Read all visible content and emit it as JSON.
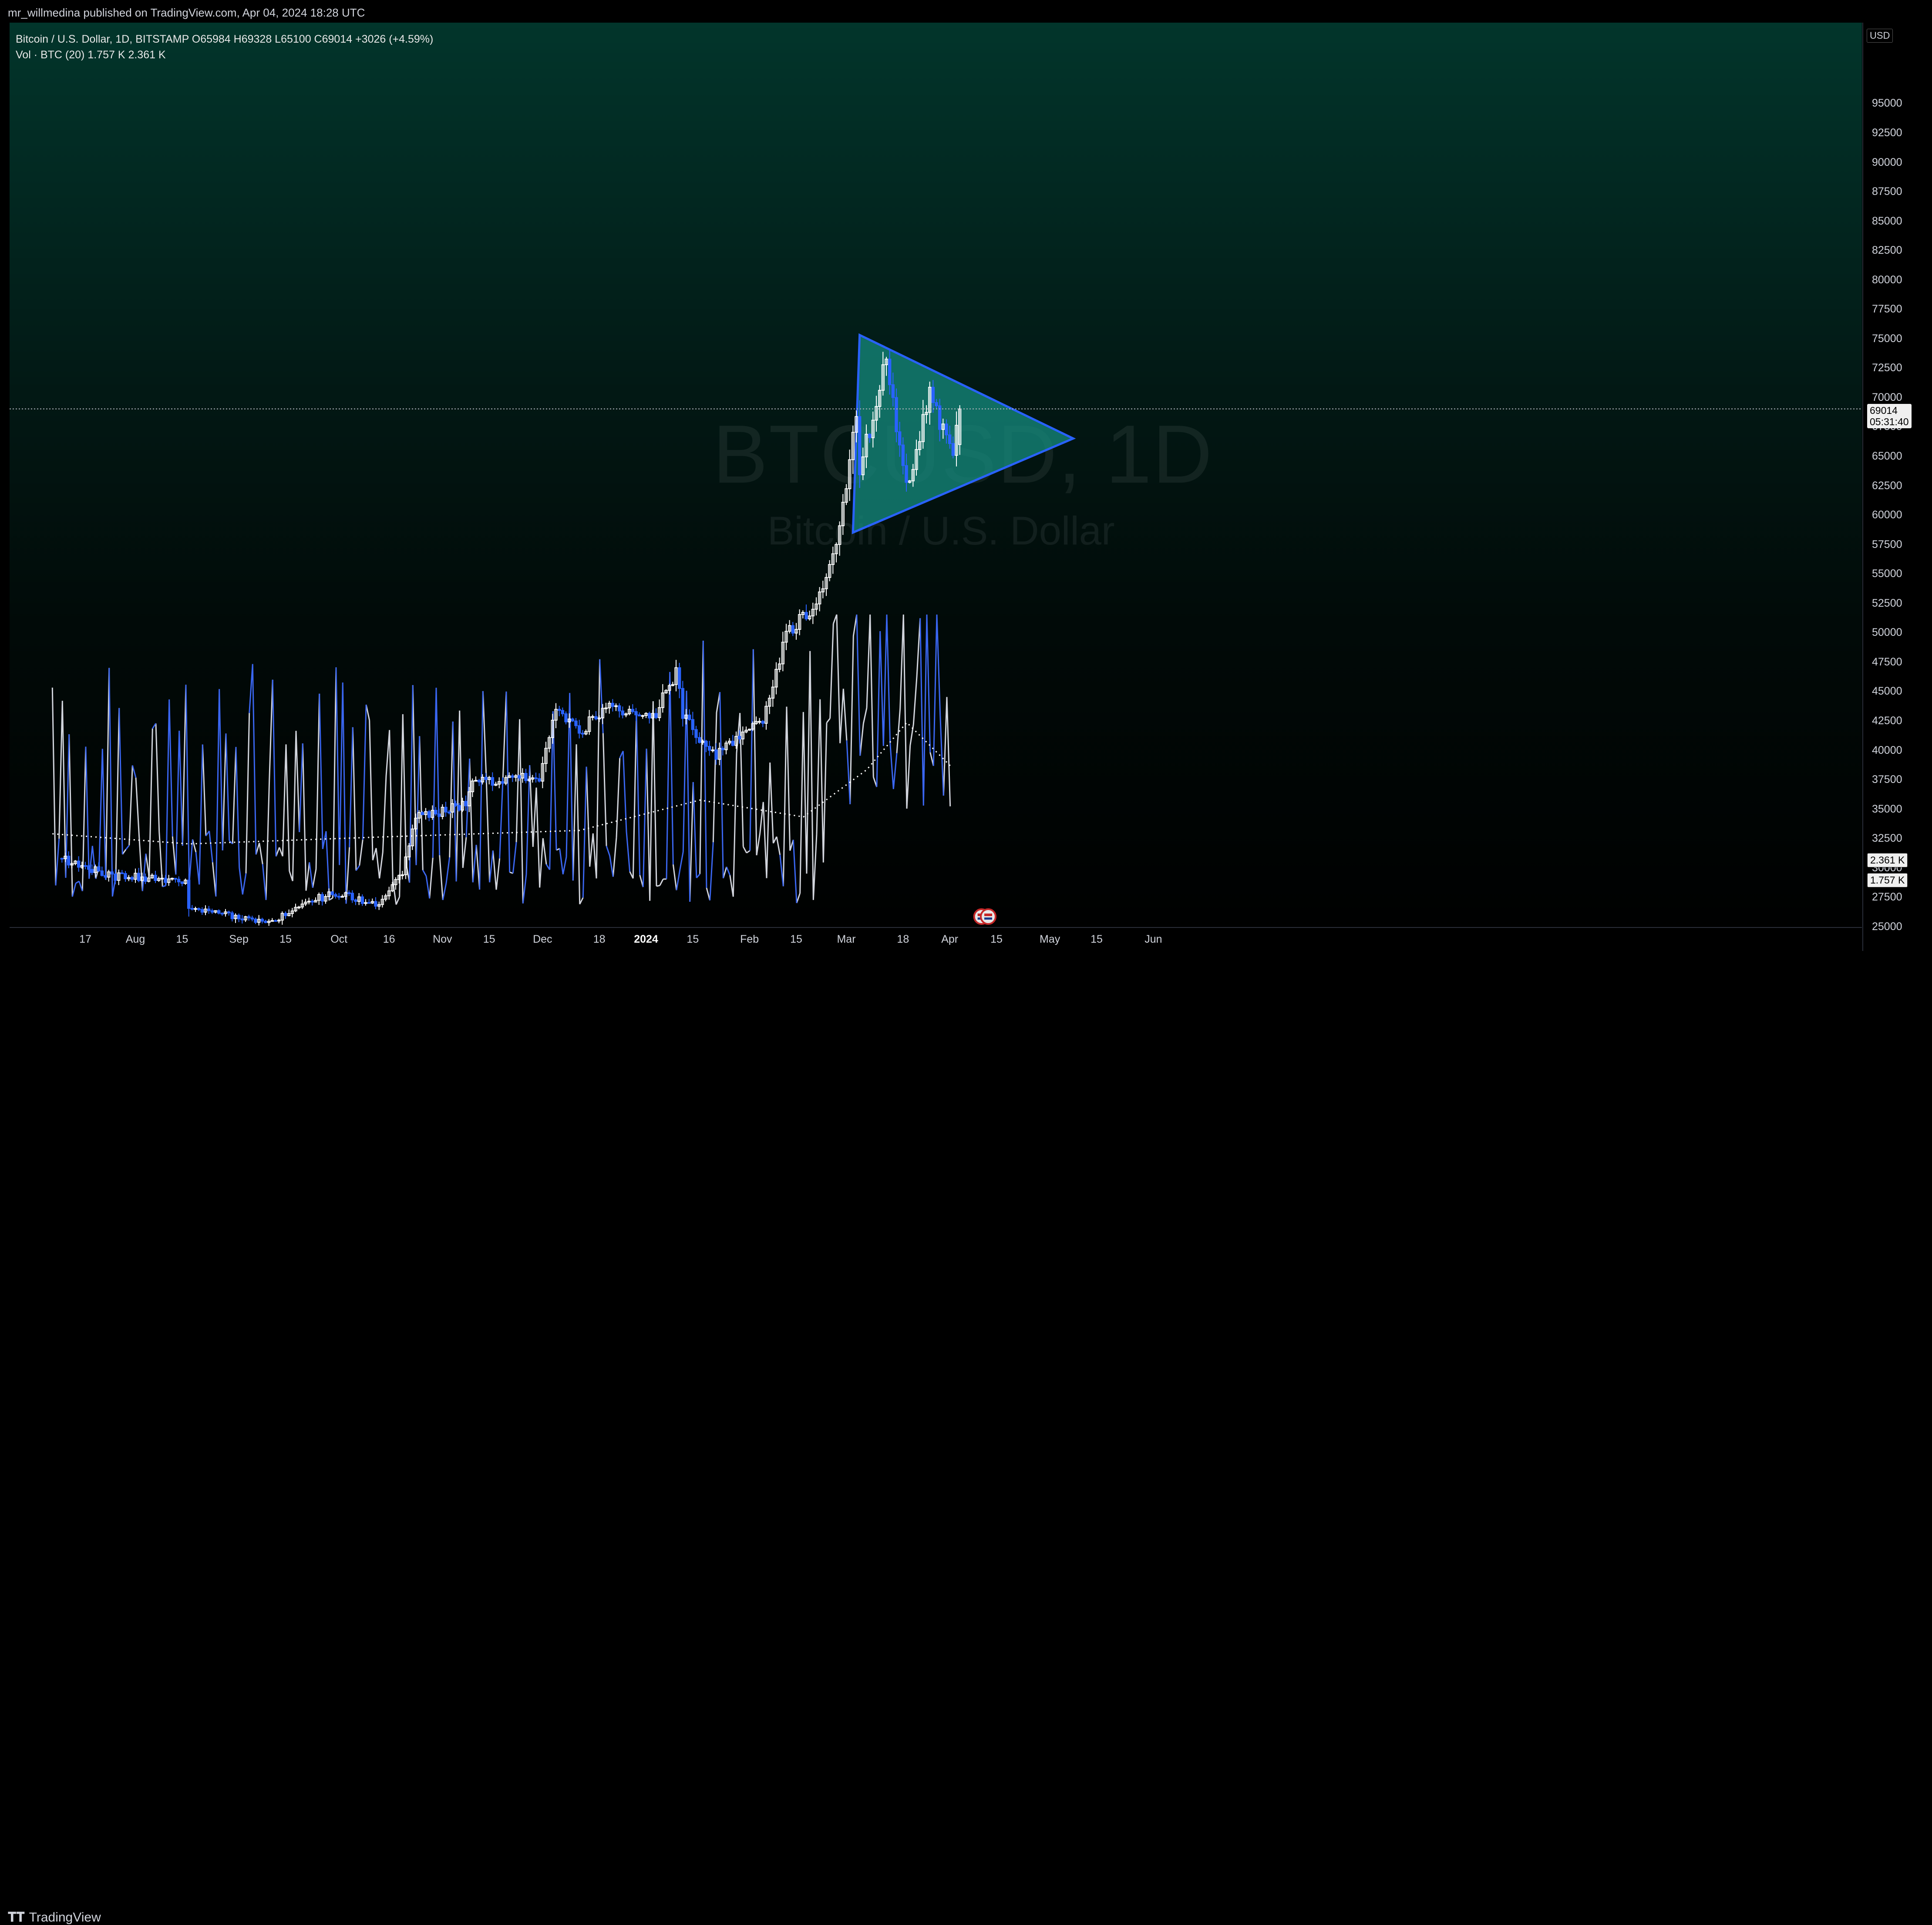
{
  "publication": {
    "text": "mr_willmedina published on TradingView.com, Apr 04, 2024 18:28 UTC"
  },
  "legend": {
    "symbol_line": "Bitcoin / U.S. Dollar, 1D, BITSTAMP  O65984  H69328  L65100  C69014  +3026 (+4.59%)",
    "volume_line": "Vol · BTC (20)  1.757 K  2.361 K"
  },
  "watermark": {
    "symbol": "BTCUSD, 1D",
    "name": "Bitcoin / U.S. Dollar"
  },
  "price_axis": {
    "currency": "USD",
    "current_price": "69014",
    "countdown": "05:31:40",
    "volume_ma_label": "2.361 K",
    "volume_label": "1.757 K"
  },
  "footer": {
    "brand": "TradingView"
  },
  "colors": {
    "up": "#ffffff",
    "down": "#2962ff",
    "triangle_fill": "#15867a",
    "triangle_stroke": "#2962ff",
    "volume_up": "#d1d4dc",
    "volume_down": "#3a66f0",
    "ma": "#ffffff"
  },
  "chart_data": {
    "type": "candlestick",
    "title": "Bitcoin / U.S. Dollar",
    "symbol": "BTCUSD",
    "exchange": "BITSTAMP",
    "interval": "1D",
    "last_ohlc": {
      "open": 65984,
      "high": 69328,
      "low": 65100,
      "close": 69014,
      "change": 3026,
      "change_pct": 4.59
    },
    "y_ticks": [
      25000,
      27500,
      30000,
      32500,
      35000,
      37500,
      40000,
      42500,
      45000,
      47500,
      50000,
      52500,
      55000,
      57500,
      60000,
      62500,
      65000,
      67500,
      70000,
      72500,
      75000,
      77500,
      80000,
      82500,
      85000,
      87500,
      90000,
      92500,
      95000
    ],
    "y_tick_labels": [
      "25000",
      "27500",
      "30000",
      "32500",
      "35000",
      "37500",
      "40000",
      "42500",
      "45000",
      "47500",
      "50000",
      "52500",
      "55000",
      "57500",
      "60000",
      "62500",
      "65000",
      "67500",
      "70000",
      "72500",
      "75000",
      "77500",
      "80000",
      "82500",
      "85000",
      "87500",
      "90000",
      "92500",
      "95000"
    ],
    "x_ticks": [
      {
        "date": "2023-07-17",
        "label": "17"
      },
      {
        "date": "2023-08-01",
        "label": "Aug"
      },
      {
        "date": "2023-08-15",
        "label": "15"
      },
      {
        "date": "2023-09-01",
        "label": "Sep"
      },
      {
        "date": "2023-09-15",
        "label": "15"
      },
      {
        "date": "2023-10-01",
        "label": "Oct"
      },
      {
        "date": "2023-10-16",
        "label": "16"
      },
      {
        "date": "2023-11-01",
        "label": "Nov"
      },
      {
        "date": "2023-11-15",
        "label": "15"
      },
      {
        "date": "2023-12-01",
        "label": "Dec"
      },
      {
        "date": "2023-12-18",
        "label": "18"
      },
      {
        "date": "2024-01-01",
        "label": "2024"
      },
      {
        "date": "2024-01-15",
        "label": "15"
      },
      {
        "date": "2024-02-01",
        "label": "Feb"
      },
      {
        "date": "2024-02-15",
        "label": "15"
      },
      {
        "date": "2024-03-01",
        "label": "Mar"
      },
      {
        "date": "2024-03-18",
        "label": "18"
      },
      {
        "date": "2024-04-01",
        "label": "Apr"
      },
      {
        "date": "2024-04-15",
        "label": "15"
      },
      {
        "date": "2024-05-01",
        "label": "May"
      },
      {
        "date": "2024-05-15",
        "label": "15"
      },
      {
        "date": "2024-06-01",
        "label": "Jun"
      }
    ],
    "anchors": [
      {
        "date": "2023-07-10",
        "close": 30800
      },
      {
        "date": "2023-07-18",
        "close": 30000
      },
      {
        "date": "2023-07-24",
        "close": 29300
      },
      {
        "date": "2023-08-05",
        "close": 29100
      },
      {
        "date": "2023-08-16",
        "close": 28900
      },
      {
        "date": "2023-08-17",
        "close": 26600
      },
      {
        "date": "2023-09-01",
        "close": 25800
      },
      {
        "date": "2023-09-11",
        "close": 25200
      },
      {
        "date": "2023-09-20",
        "close": 27000
      },
      {
        "date": "2023-10-01",
        "close": 27900
      },
      {
        "date": "2023-10-12",
        "close": 26800
      },
      {
        "date": "2023-10-20",
        "close": 29400
      },
      {
        "date": "2023-10-24",
        "close": 34200
      },
      {
        "date": "2023-11-08",
        "close": 35400
      },
      {
        "date": "2023-11-10",
        "close": 37300
      },
      {
        "date": "2023-11-30",
        "close": 37800
      },
      {
        "date": "2023-12-05",
        "close": 44000
      },
      {
        "date": "2023-12-12",
        "close": 41400
      },
      {
        "date": "2023-12-20",
        "close": 43800
      },
      {
        "date": "2024-01-03",
        "close": 42700
      },
      {
        "date": "2024-01-10",
        "close": 46600
      },
      {
        "date": "2024-01-12",
        "close": 42800
      },
      {
        "date": "2024-01-22",
        "close": 39500
      },
      {
        "date": "2024-02-05",
        "close": 42600
      },
      {
        "date": "2024-02-12",
        "close": 49900
      },
      {
        "date": "2024-02-20",
        "close": 52200
      },
      {
        "date": "2024-02-27",
        "close": 57000
      },
      {
        "date": "2024-03-04",
        "close": 68300
      },
      {
        "date": "2024-03-05",
        "close": 63800
      },
      {
        "date": "2024-03-13",
        "close": 73100
      },
      {
        "date": "2024-03-19",
        "close": 62500
      },
      {
        "date": "2024-03-26",
        "close": 70000
      },
      {
        "date": "2024-04-02",
        "close": 65600
      },
      {
        "date": "2024-04-04",
        "close": 69014
      }
    ],
    "volume_ma_anchors": [
      {
        "date": "2023-07-10",
        "value": 1.35
      },
      {
        "date": "2023-08-20",
        "value": 1.2
      },
      {
        "date": "2023-10-15",
        "value": 1.3
      },
      {
        "date": "2023-12-15",
        "value": 1.4
      },
      {
        "date": "2024-01-20",
        "value": 1.85
      },
      {
        "date": "2024-02-20",
        "value": 1.6
      },
      {
        "date": "2024-03-10",
        "value": 2.3
      },
      {
        "date": "2024-03-22",
        "value": 3.0
      },
      {
        "date": "2024-04-04",
        "value": 2.36
      }
    ],
    "pattern": {
      "type": "symmetrical triangle",
      "points": [
        {
          "date": "2024-03-05",
          "price": 75300
        },
        {
          "date": "2024-05-08",
          "price": 66500
        },
        {
          "date": "2024-03-03",
          "price": 58500
        }
      ]
    },
    "last_price": 69014,
    "volume_current": "1.757 K",
    "volume_ma": "2.361 K"
  }
}
